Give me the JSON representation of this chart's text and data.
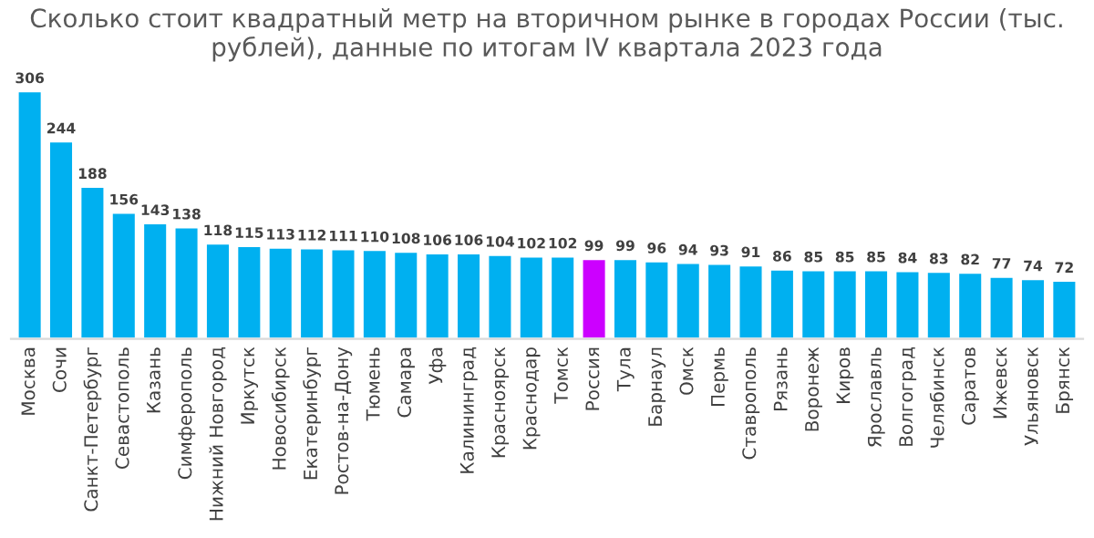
{
  "chart_data": {
    "type": "bar",
    "title": "Сколько стоит квадратный метр на вторичном рынке в городах России (тыс. рублей), данные по итогам IV квартала 2023 года",
    "categories": [
      "Москва",
      "Сочи",
      "Санкт-Петербург",
      "Севастополь",
      "Казань",
      "Симферополь",
      "Нижний Новгород",
      "Иркутск",
      "Новосибирск",
      "Екатеринбург",
      "Ростов-на-Дону",
      "Тюмень",
      "Самара",
      "Уфа",
      "Калининград",
      "Красноярск",
      "Краснодар",
      "Томск",
      "Россия",
      "Тула",
      "Барнаул",
      "Омск",
      "Пермь",
      "Ставрополь",
      "Рязань",
      "Воронеж",
      "Киров",
      "Ярославль",
      "Волгоград",
      "Челябинск",
      "Саратов",
      "Ижевск",
      "Ульяновск",
      "Брянск"
    ],
    "values": [
      306,
      244,
      188,
      156,
      143,
      138,
      118,
      115,
      113,
      112,
      111,
      110,
      108,
      106,
      106,
      104,
      102,
      102,
      99,
      99,
      96,
      94,
      93,
      91,
      86,
      85,
      85,
      85,
      84,
      83,
      82,
      77,
      74,
      72
    ],
    "colors": [
      "#00b0f0",
      "#00b0f0",
      "#00b0f0",
      "#00b0f0",
      "#00b0f0",
      "#00b0f0",
      "#00b0f0",
      "#00b0f0",
      "#00b0f0",
      "#00b0f0",
      "#00b0f0",
      "#00b0f0",
      "#00b0f0",
      "#00b0f0",
      "#00b0f0",
      "#00b0f0",
      "#00b0f0",
      "#00b0f0",
      "#cc00ff",
      "#00b0f0",
      "#00b0f0",
      "#00b0f0",
      "#00b0f0",
      "#00b0f0",
      "#00b0f0",
      "#00b0f0",
      "#00b0f0",
      "#00b0f0",
      "#00b0f0",
      "#00b0f0",
      "#00b0f0",
      "#00b0f0",
      "#00b0f0",
      "#00b0f0"
    ],
    "data_labels": true,
    "grid": false,
    "legend": false,
    "tick_labels": "x"
  }
}
